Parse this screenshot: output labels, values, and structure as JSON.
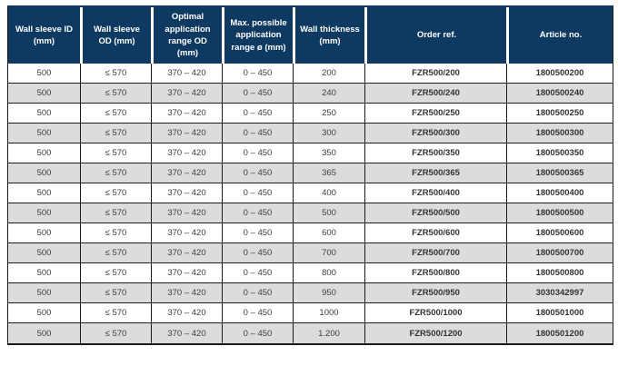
{
  "colors": {
    "header_bg": "#0e3a62",
    "header_text": "#ffffff",
    "row_alt_bg": "#dcdcdc",
    "border": "#1a1a1a",
    "cell_text": "#3e3e3e"
  },
  "table": {
    "columns": [
      {
        "id": "wall-sleeve-id",
        "label": "Wall sleeve ID (mm)"
      },
      {
        "id": "wall-sleeve-od",
        "label": "Wall sleeve OD (mm)"
      },
      {
        "id": "optimal-application-range-od",
        "label": "Optimal application range OD (mm)"
      },
      {
        "id": "max-possible-application-range",
        "label": "Max. possible application range ø (mm)"
      },
      {
        "id": "wall-thickness",
        "label": "Wall thickness (mm)"
      },
      {
        "id": "order-ref",
        "label": "Order ref."
      },
      {
        "id": "article-no",
        "label": "Article no."
      }
    ],
    "rows": [
      [
        "500",
        "≤ 570",
        "370 – 420",
        "0 – 450",
        "200",
        "FZR500/200",
        "1800500200"
      ],
      [
        "500",
        "≤ 570",
        "370 – 420",
        "0 – 450",
        "240",
        "FZR500/240",
        "1800500240"
      ],
      [
        "500",
        "≤ 570",
        "370 – 420",
        "0 – 450",
        "250",
        "FZR500/250",
        "1800500250"
      ],
      [
        "500",
        "≤ 570",
        "370 – 420",
        "0 – 450",
        "300",
        "FZR500/300",
        "1800500300"
      ],
      [
        "500",
        "≤ 570",
        "370 – 420",
        "0 – 450",
        "350",
        "FZR500/350",
        "1800500350"
      ],
      [
        "500",
        "≤ 570",
        "370 – 420",
        "0 – 450",
        "365",
        "FZR500/365",
        "1800500365"
      ],
      [
        "500",
        "≤ 570",
        "370 – 420",
        "0 – 450",
        "400",
        "FZR500/400",
        "1800500400"
      ],
      [
        "500",
        "≤ 570",
        "370 – 420",
        "0 – 450",
        "500",
        "FZR500/500",
        "1800500500"
      ],
      [
        "500",
        "≤ 570",
        "370 – 420",
        "0 – 450",
        "600",
        "FZR500/600",
        "1800500600"
      ],
      [
        "500",
        "≤ 570",
        "370 – 420",
        "0 – 450",
        "700",
        "FZR500/700",
        "1800500700"
      ],
      [
        "500",
        "≤ 570",
        "370 – 420",
        "0 – 450",
        "800",
        "FZR500/800",
        "1800500800"
      ],
      [
        "500",
        "≤ 570",
        "370 – 420",
        "0 – 450",
        "950",
        "FZR500/950",
        "3030342997"
      ],
      [
        "500",
        "≤ 570",
        "370 – 420",
        "0 – 450",
        "1000",
        "FZR500/1000",
        "1800501000"
      ],
      [
        "500",
        "≤ 570",
        "370 – 420",
        "0 – 450",
        "1.200",
        "FZR500/1200",
        "1800501200"
      ]
    ]
  }
}
